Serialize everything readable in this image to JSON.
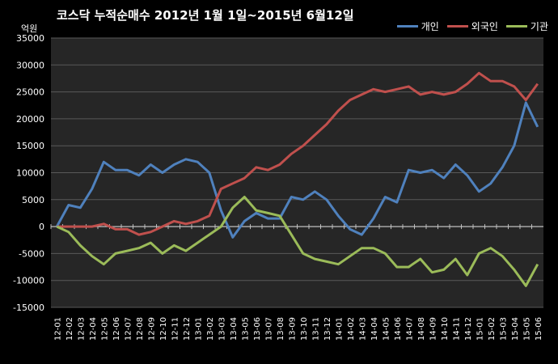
{
  "chart_data": {
    "type": "line",
    "title": "코스닥  누적순매수 2012년 1월 1일~2015년 6월12일",
    "unit_label": "억원",
    "ylim": [
      -15000,
      35000
    ],
    "yticks": [
      -15000,
      -10000,
      -5000,
      0,
      5000,
      10000,
      15000,
      20000,
      25000,
      30000,
      35000
    ],
    "categories": [
      "12-01",
      "12-02",
      "12-03",
      "12-04",
      "12-05",
      "12-06",
      "12-07",
      "12-08",
      "12-09",
      "12-10",
      "12-11",
      "12-12",
      "13-01",
      "13-02",
      "13-03",
      "13-04",
      "13-05",
      "13-06",
      "13-07",
      "13-08",
      "13-09",
      "13-10",
      "13-11",
      "13-12",
      "14-01",
      "14-02",
      "14-03",
      "14-04",
      "14-05",
      "14-06",
      "14-07",
      "14-08",
      "14-09",
      "14-10",
      "14-11",
      "14-12",
      "15-01",
      "15-02",
      "15-03",
      "15-04",
      "15-05",
      "15-06"
    ],
    "legend_position": "top-right",
    "series": [
      {
        "name": "개인",
        "color": "#4F81BD",
        "values": [
          0,
          4000,
          3500,
          7000,
          12000,
          10500,
          10500,
          9500,
          11500,
          10000,
          11500,
          12500,
          12000,
          10000,
          3000,
          -2000,
          1000,
          2500,
          1500,
          1500,
          5500,
          5000,
          6500,
          5000,
          2000,
          -500,
          -1500,
          1500,
          5500,
          4500,
          10500,
          10000,
          10500,
          9000,
          11500,
          9500,
          6500,
          8000,
          11000,
          15000,
          23000,
          18500
        ]
      },
      {
        "name": "외국인",
        "color": "#C0504D",
        "values": [
          0,
          0,
          0,
          0,
          500,
          -500,
          -500,
          -1500,
          -1000,
          0,
          1000,
          500,
          1000,
          2000,
          7000,
          8000,
          9000,
          11000,
          10500,
          11500,
          13500,
          15000,
          17000,
          19000,
          21500,
          23500,
          24500,
          25500,
          25000,
          25500,
          26000,
          24500,
          25000,
          24500,
          25000,
          26500,
          28500,
          27000,
          27000,
          26000,
          23500,
          26500
        ]
      },
      {
        "name": "기관",
        "color": "#9BBB59",
        "values": [
          0,
          -1000,
          -3500,
          -5500,
          -7000,
          -5000,
          -4500,
          -4000,
          -3000,
          -5000,
          -3500,
          -4500,
          -3000,
          -1500,
          0,
          3500,
          5500,
          3000,
          2500,
          2000,
          -1500,
          -5000,
          -6000,
          -6500,
          -7000,
          -5500,
          -4000,
          -4000,
          -5000,
          -7500,
          -7500,
          -6000,
          -8500,
          -8000,
          -6000,
          -9000,
          -5000,
          -4000,
          -5500,
          -8000,
          -11000,
          -7000
        ]
      }
    ]
  }
}
